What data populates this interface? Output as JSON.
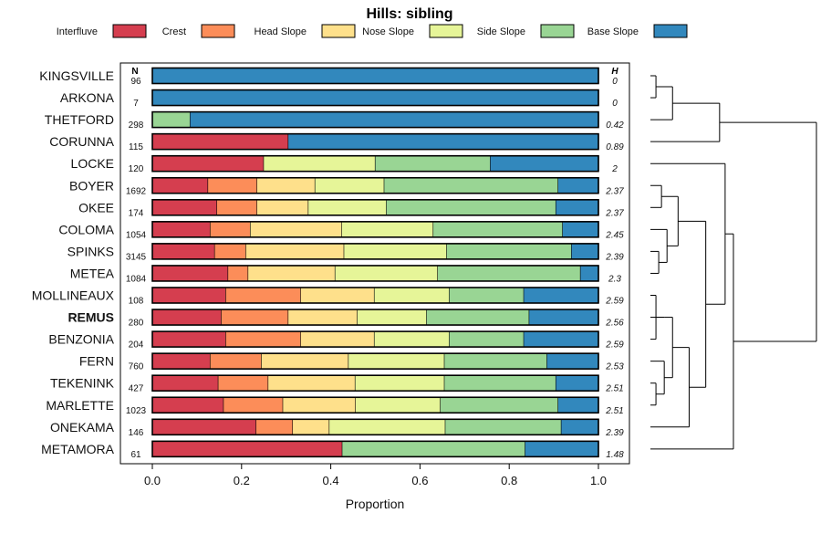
{
  "chart_data": {
    "type": "bar",
    "orientation": "horizontal",
    "stacked": true,
    "title": "Hills: sibling",
    "xlabel": "Proportion",
    "ylabel": "",
    "xlim": [
      0,
      1
    ],
    "xticks": [
      "0.0",
      "0.2",
      "0.4",
      "0.6",
      "0.8",
      "1.0"
    ],
    "n_header": "N",
    "h_header": "H",
    "legend_position": "top",
    "highlighted_category": "REMUS",
    "colors": {
      "Interfluve": "#d53e4f",
      "Crest": "#fc8d59",
      "Head Slope": "#fee08b",
      "Nose Slope": "#e6f598",
      "Side Slope": "#99d594",
      "Base Slope": "#3288bd"
    },
    "series_names": [
      "Interfluve",
      "Crest",
      "Head Slope",
      "Nose Slope",
      "Side Slope",
      "Base Slope"
    ],
    "categories": [
      "KINGSVILLE",
      "ARKONA",
      "THETFORD",
      "CORUNNA",
      "LOCKE",
      "BOYER",
      "OKEE",
      "COLOMA",
      "SPINKS",
      "METEA",
      "MOLLINEAUX",
      "REMUS",
      "BENZONIA",
      "FERN",
      "TEKENINK",
      "MARLETTE",
      "ONEKAMA",
      "METAMORA"
    ],
    "n": [
      "96",
      "7",
      "298",
      "115",
      "120",
      "1692",
      "174",
      "1054",
      "3145",
      "1084",
      "108",
      "280",
      "204",
      "760",
      "427",
      "1023",
      "146",
      "61"
    ],
    "h": [
      "0",
      "0",
      "0.42",
      "0.89",
      "2",
      "2.37",
      "2.37",
      "2.45",
      "2.39",
      "2.3",
      "2.59",
      "2.56",
      "2.59",
      "2.53",
      "2.51",
      "2.51",
      "2.39",
      "1.48"
    ],
    "series": [
      {
        "name": "Interfluve",
        "values": [
          0,
          0,
          0,
          0.305,
          0.25,
          0.125,
          0.145,
          0.13,
          0.14,
          0.17,
          0.165,
          0.155,
          0.165,
          0.13,
          0.148,
          0.16,
          0.233,
          0.426
        ]
      },
      {
        "name": "Crest",
        "values": [
          0,
          0,
          0,
          0,
          0,
          0.11,
          0.09,
          0.09,
          0.07,
          0.045,
          0.168,
          0.15,
          0.168,
          0.115,
          0.112,
          0.133,
          0.082,
          0
        ]
      },
      {
        "name": "Head Slope",
        "values": [
          0,
          0,
          0,
          0,
          0,
          0.13,
          0.115,
          0.205,
          0.22,
          0.195,
          0.165,
          0.155,
          0.165,
          0.195,
          0.195,
          0.163,
          0.082,
          0
        ]
      },
      {
        "name": "Nose Slope",
        "values": [
          0,
          0,
          0,
          0,
          0.25,
          0.155,
          0.175,
          0.205,
          0.23,
          0.23,
          0.168,
          0.155,
          0.168,
          0.215,
          0.2,
          0.19,
          0.26,
          0
        ]
      },
      {
        "name": "Side Slope",
        "values": [
          0,
          0,
          0.085,
          0,
          0.258,
          0.39,
          0.38,
          0.29,
          0.28,
          0.32,
          0.167,
          0.23,
          0.167,
          0.23,
          0.25,
          0.264,
          0.26,
          0.41
        ]
      },
      {
        "name": "Base Slope",
        "values": [
          1,
          1,
          0.915,
          0.695,
          0.242,
          0.09,
          0.095,
          0.08,
          0.06,
          0.04,
          0.167,
          0.155,
          0.167,
          0.115,
          0.095,
          0.09,
          0.083,
          0.164
        ]
      }
    ],
    "dendrogram": {
      "order": [
        "KINGSVILLE",
        "ARKONA",
        "THETFORD",
        "CORUNNA",
        "LOCKE",
        "BOYER",
        "OKEE",
        "COLOMA",
        "SPINKS",
        "METEA",
        "MOLLINEAUX",
        "REMUS",
        "BENZONIA",
        "FERN",
        "TEKENINK",
        "MARLETTE",
        "ONEKAMA",
        "METAMORA"
      ],
      "merges": [
        [
          -1,
          -2,
          0.02
        ],
        [
          1,
          -3,
          0.08
        ],
        [
          2,
          -4,
          0.25
        ],
        [
          -6,
          -7,
          0.04
        ],
        [
          -9,
          -10,
          0.03
        ],
        [
          -8,
          5,
          0.06
        ],
        [
          4,
          6,
          0.1
        ],
        [
          -11,
          -13,
          0.02
        ],
        [
          8,
          -12,
          0.05
        ],
        [
          -15,
          -16,
          0.02
        ],
        [
          -14,
          10,
          0.05
        ],
        [
          9,
          11,
          0.08
        ],
        [
          12,
          -17,
          0.14
        ],
        [
          7,
          13,
          0.2
        ],
        [
          -5,
          14,
          0.27
        ],
        [
          15,
          -18,
          0.3
        ],
        [
          3,
          16,
          0.6
        ]
      ]
    }
  }
}
